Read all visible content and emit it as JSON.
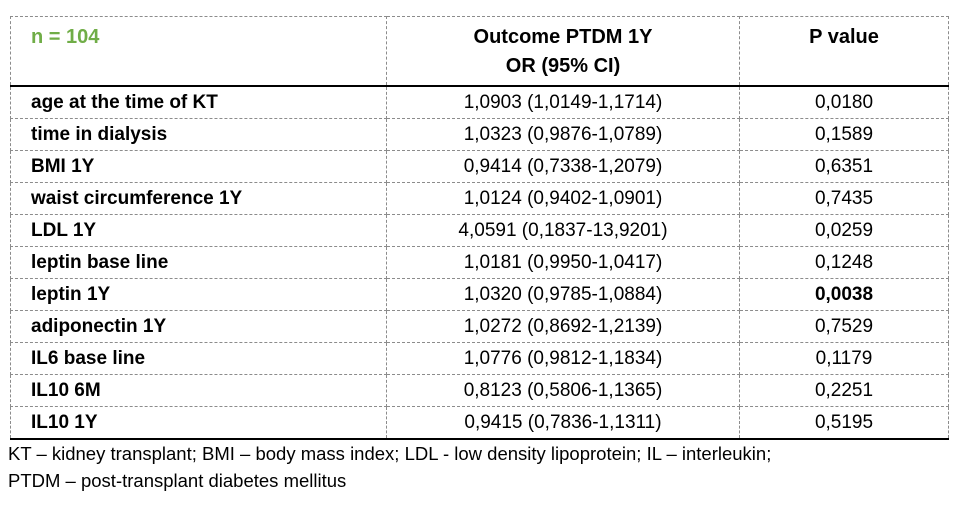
{
  "colors": {
    "accent_green": "#70ad47",
    "dashed_border": "#8c8c8c",
    "solid_rule": "#000000"
  },
  "table": {
    "header": {
      "n_label": "n = 104",
      "outcome_line1": "Outcome PTDM 1Y",
      "outcome_line2": "OR (95% CI)",
      "p_label": "P value"
    },
    "rows": [
      {
        "label": "age at the time of KT",
        "or_ci": "1,0903 (1,0149-1,1714)",
        "p": "0,0180",
        "p_bold": false
      },
      {
        "label": "time in dialysis",
        "or_ci": "1,0323 (0,9876-1,0789)",
        "p": "0,1589",
        "p_bold": false
      },
      {
        "label": "BMI 1Y",
        "or_ci": "0,9414 (0,7338-1,2079)",
        "p": "0,6351",
        "p_bold": false
      },
      {
        "label": "waist circumference 1Y",
        "or_ci": "1,0124 (0,9402-1,0901)",
        "p": "0,7435",
        "p_bold": false
      },
      {
        "label": "LDL 1Y",
        "or_ci": "4,0591 (0,1837-13,9201)",
        "p": "0,0259",
        "p_bold": false
      },
      {
        "label": "leptin base line",
        "or_ci": "1,0181 (0,9950-1,0417)",
        "p": "0,1248",
        "p_bold": false
      },
      {
        "label": "leptin 1Y",
        "or_ci": "1,0320 (0,9785-1,0884)",
        "p": "0,0038",
        "p_bold": true
      },
      {
        "label": "adiponectin 1Y",
        "or_ci": "1,0272 (0,8692-1,2139)",
        "p": "0,7529",
        "p_bold": false
      },
      {
        "label": "IL6 base line",
        "or_ci": "1,0776 (0,9812-1,1834)",
        "p": "0,1179",
        "p_bold": false
      },
      {
        "label": "IL10 6M",
        "or_ci": "0,8123 (0,5806-1,1365)",
        "p": "0,2251",
        "p_bold": false
      },
      {
        "label": "IL10 1Y",
        "or_ci": "0,9415 (0,7836-1,1311)",
        "p": "0,5195",
        "p_bold": false
      }
    ]
  },
  "footnote": {
    "line1": "KT – kidney transplant; BMI – body mass index; LDL - low density lipoprotein; IL – interleukin;",
    "line2": "PTDM – post-transplant diabetes mellitus"
  }
}
